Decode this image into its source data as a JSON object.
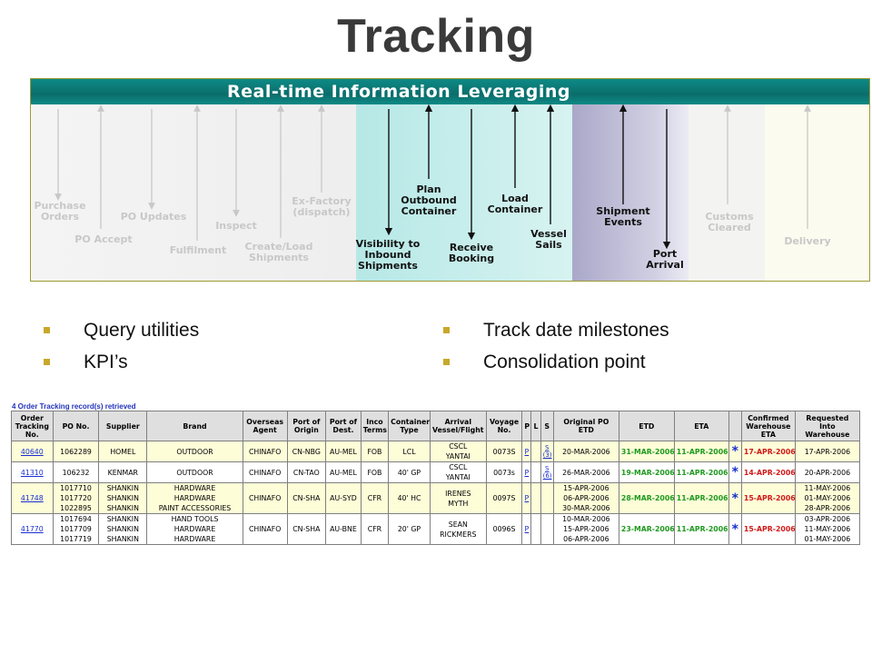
{
  "title": "Tracking",
  "diagram": {
    "header": "Real-time Information Leveraging",
    "labels": {
      "purchase_orders": "Purchase Orders",
      "po_accept": "PO Accept",
      "po_updates": "PO Updates",
      "fulfilment": "Fulfilment",
      "inspect": "Inspect",
      "create_load": "Create/Load Shipments",
      "ex_factory": "Ex-Factory (dispatch)",
      "visibility": "Visibility to Inbound Shipments",
      "plan_outbound": "Plan Outbound Container",
      "receive_booking": "Receive Booking",
      "load_container": "Load Container",
      "vessel_sails": "Vessel Sails",
      "shipment_events": "Shipment Events",
      "port_arrival": "Port Arrival",
      "customs_cleared": "Customs Cleared",
      "delivery": "Delivery"
    }
  },
  "bullets": {
    "left": [
      "Query utilities",
      "KPI’s"
    ],
    "right": [
      "Track date milestones",
      "Consolidation point"
    ]
  },
  "table": {
    "records_text": "4 Order Tracking record(s) retrieved",
    "headers": [
      "Order Tracking No.",
      "PO No.",
      "Supplier",
      "Brand",
      "Overseas Agent",
      "Port of Origin",
      "Port of Dest.",
      "Inco Terms",
      "Container Type",
      "Arrival Vessel/Flight",
      "Voyage No.",
      "P",
      "L",
      "S",
      "Original PO ETD",
      "ETD",
      "ETA",
      "",
      "Confirmed Warehouse ETA",
      "Requested Into Warehouse"
    ],
    "rows": [
      {
        "tracking": "40640",
        "po": [
          "1062289"
        ],
        "supplier": [
          "HOMEL"
        ],
        "brand": [
          "OUTDOOR"
        ],
        "agent": "CHINAFO",
        "origin": "CN-NBG",
        "dest": "AU-MEL",
        "inco": "FOB",
        "container": "LCL",
        "vessel": [
          "CSCL",
          "YANTAI"
        ],
        "voyage": "0073S",
        "p": "P",
        "l": "",
        "s": [
          "S",
          "(3)"
        ],
        "orig_etd": [
          "20-MAR-2006"
        ],
        "etd": "31-MAR-2006",
        "eta": "11-APR-2006",
        "star": "*",
        "conf_eta": "17-APR-2006",
        "req": [
          "17-APR-2006"
        ]
      },
      {
        "tracking": "41310",
        "po": [
          "106232"
        ],
        "supplier": [
          "KENMAR"
        ],
        "brand": [
          "OUTDOOR"
        ],
        "agent": "CHINAFO",
        "origin": "CN-TAO",
        "dest": "AU-MEL",
        "inco": "FOB",
        "container": "40' GP",
        "vessel": [
          "CSCL",
          "YANTAI"
        ],
        "voyage": "0073s",
        "p": "P",
        "l": "",
        "s": [
          "S",
          "(6)"
        ],
        "orig_etd": [
          "26-MAR-2006"
        ],
        "etd": "19-MAR-2006",
        "eta": "11-APR-2006",
        "star": "*",
        "conf_eta": "14-APR-2006",
        "req": [
          "20-APR-2006"
        ]
      },
      {
        "tracking": "41748",
        "po": [
          "1017710",
          "1017720",
          "1022895"
        ],
        "supplier": [
          "SHANKIN",
          "SHANKIN",
          "SHANKIN"
        ],
        "brand": [
          "HARDWARE",
          "HARDWARE",
          "PAINT ACCESSORIES"
        ],
        "agent": "CHINAFO",
        "origin": "CN-SHA",
        "dest": "AU-SYD",
        "inco": "CFR",
        "container": "40' HC",
        "vessel": [
          "IRENES",
          "MYTH"
        ],
        "voyage": "0097S",
        "p": "P",
        "l": "",
        "s": [
          "",
          ""
        ],
        "orig_etd": [
          "15-APR-2006",
          "06-APR-2006",
          "30-MAR-2006"
        ],
        "etd": "28-MAR-2006",
        "eta": "11-APR-2006",
        "star": "*",
        "conf_eta": "15-APR-2006",
        "req": [
          "11-MAY-2006",
          "01-MAY-2006",
          "28-APR-2006"
        ]
      },
      {
        "tracking": "41770",
        "po": [
          "1017694",
          "1017709",
          "1017719"
        ],
        "supplier": [
          "SHANKIN",
          "SHANKIN",
          "SHANKIN"
        ],
        "brand": [
          "HAND TOOLS",
          "HARDWARE",
          "HARDWARE"
        ],
        "agent": "CHINAFO",
        "origin": "CN-SHA",
        "dest": "AU-BNE",
        "inco": "CFR",
        "container": "20' GP",
        "vessel": [
          "SEAN",
          "RICKMERS"
        ],
        "voyage": "0096S",
        "p": "P",
        "l": "",
        "s": [
          "",
          ""
        ],
        "orig_etd": [
          "10-MAR-2006",
          "15-APR-2006",
          "06-APR-2006"
        ],
        "etd": "23-MAR-2006",
        "eta": "11-APR-2006",
        "star": "*",
        "conf_eta": "15-APR-2006",
        "req": [
          "03-APR-2006",
          "11-MAY-2006",
          "01-MAY-2006"
        ]
      }
    ]
  }
}
